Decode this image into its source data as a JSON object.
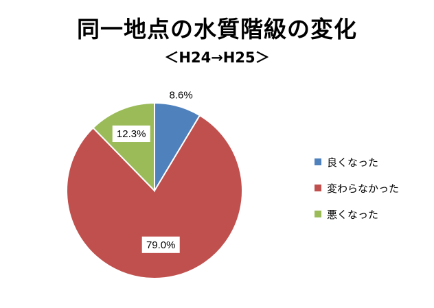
{
  "title": "同一地点の水質階級の変化",
  "subtitle": "＜H24→H25＞",
  "chart_data": {
    "type": "pie",
    "categories": [
      "良くなった",
      "変わらなかった",
      "悪くなった"
    ],
    "values": [
      8.6,
      79.0,
      12.3
    ],
    "labels": [
      "8.6%",
      "79.0%",
      "12.3%"
    ],
    "colors": [
      "#4F81BD",
      "#C0504D",
      "#9BBB59"
    ],
    "legend_position": "right"
  }
}
